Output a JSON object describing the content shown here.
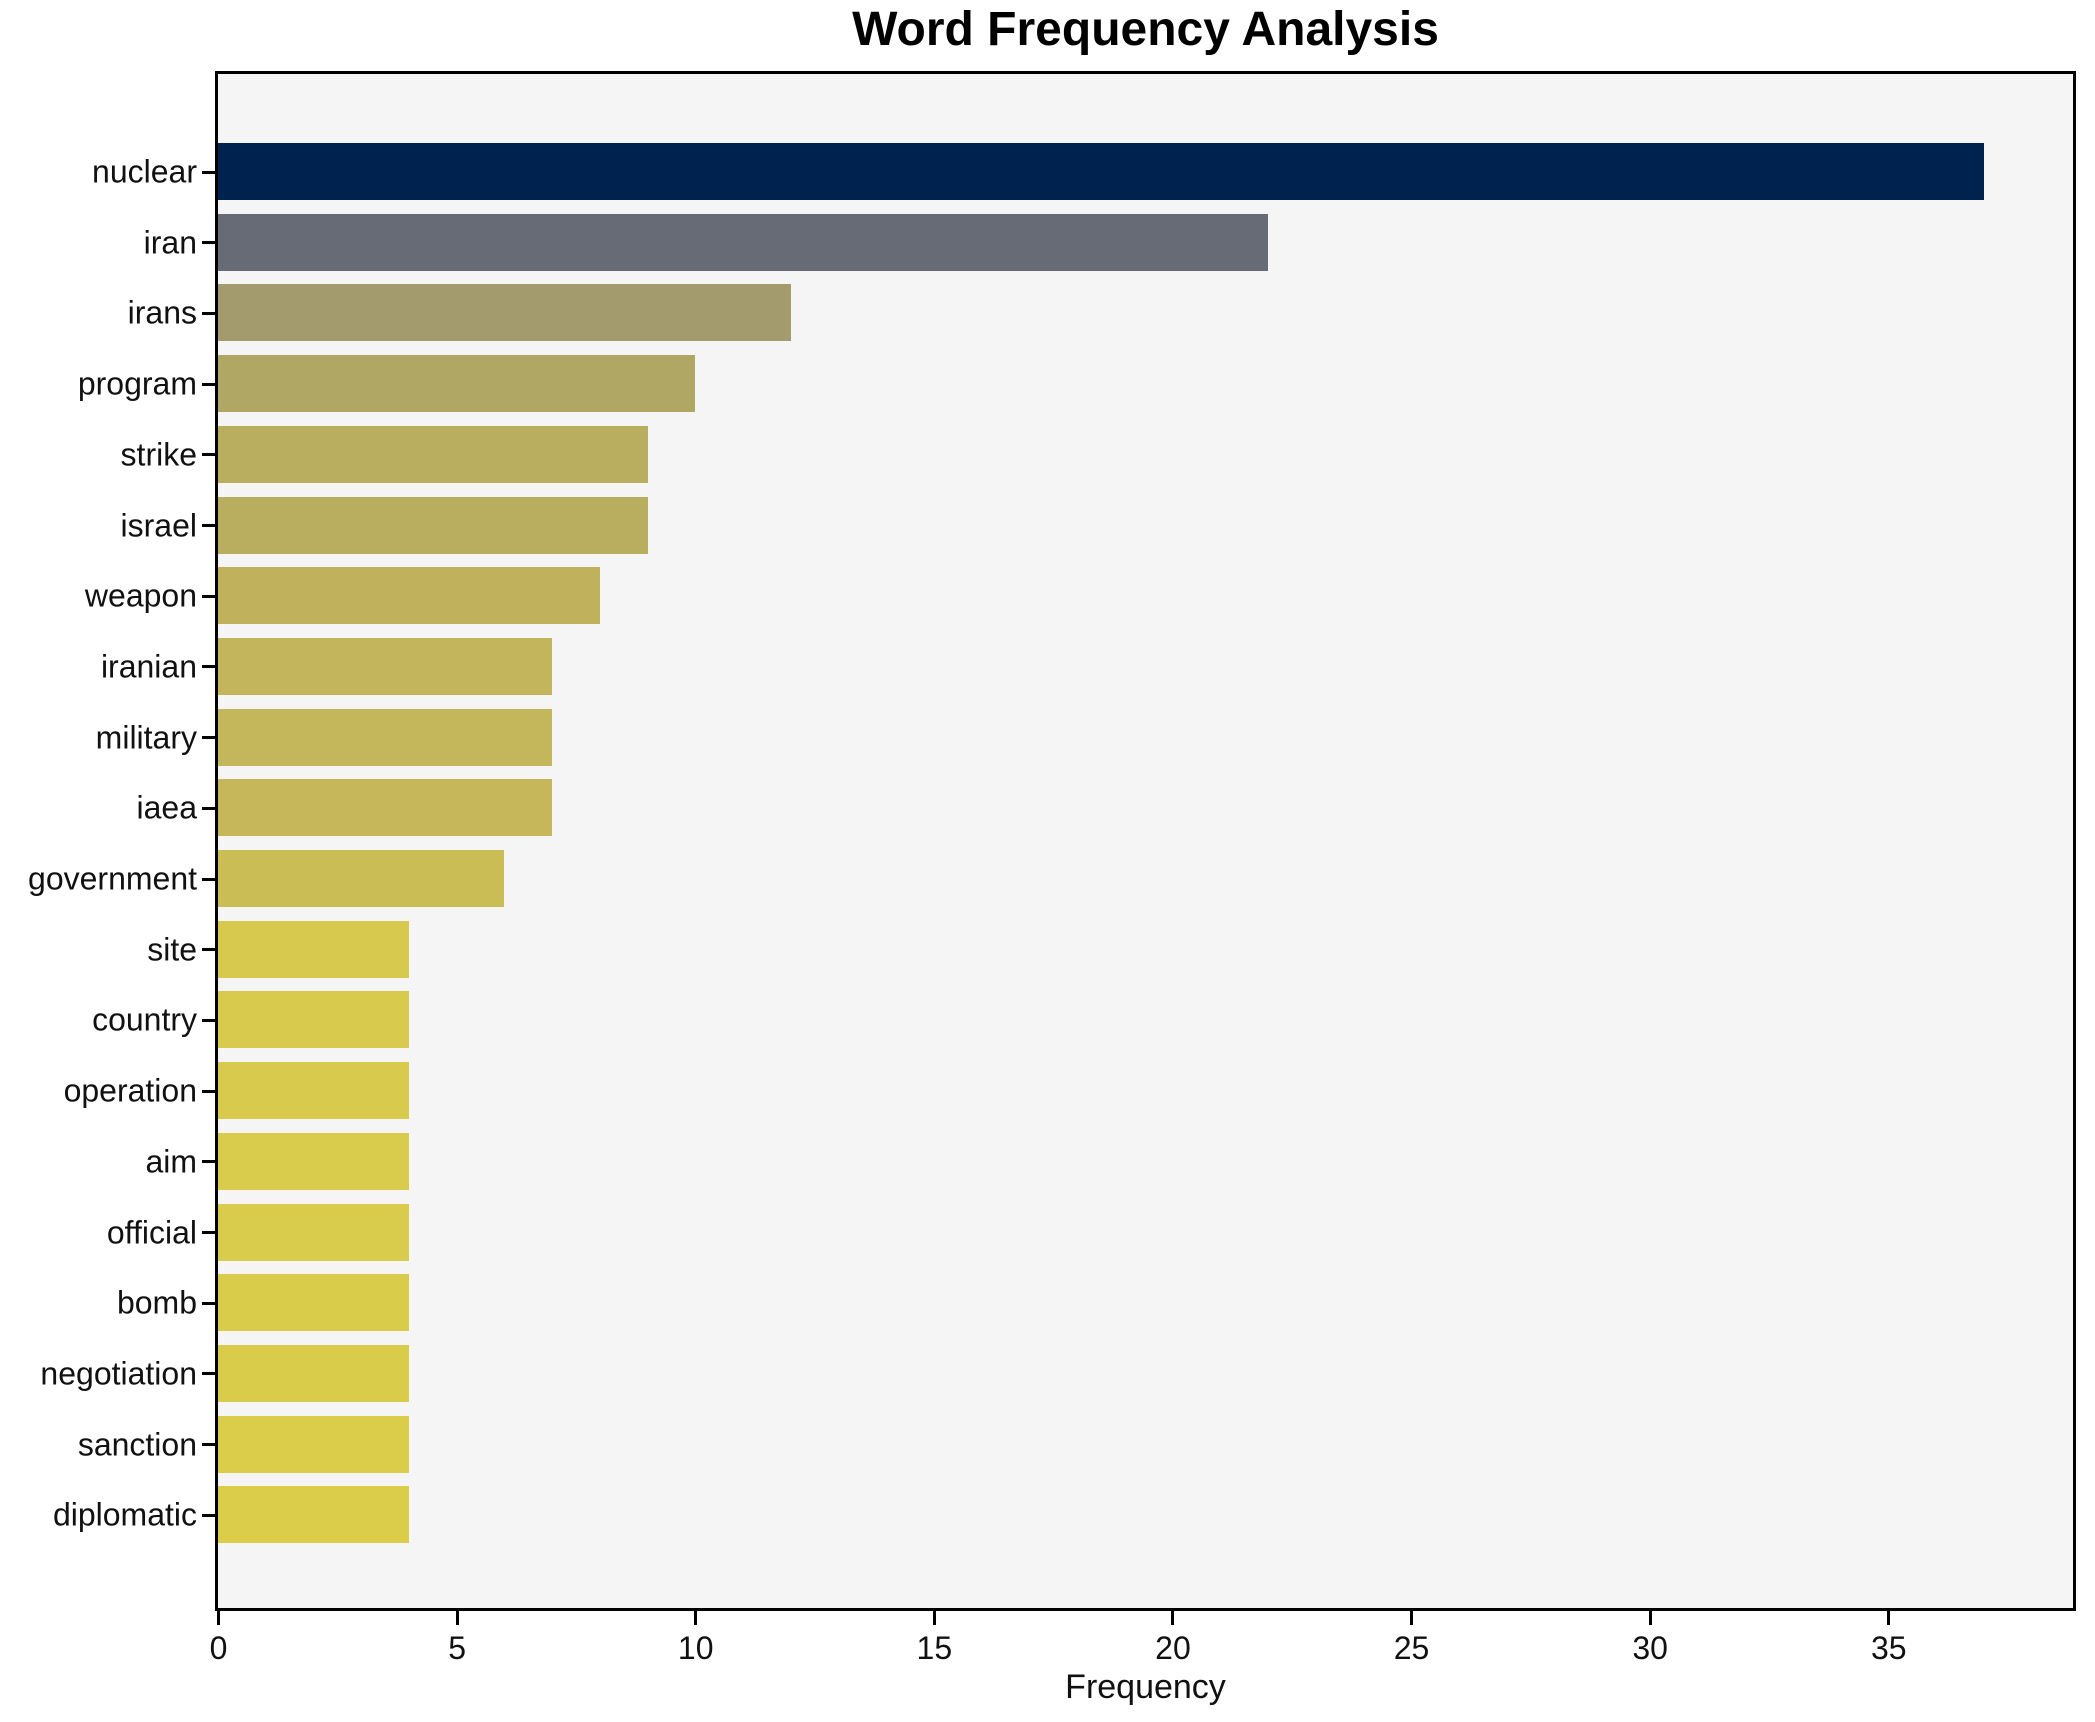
{
  "chart_data": {
    "type": "bar",
    "orientation": "horizontal",
    "title": "Word Frequency Analysis",
    "xlabel": "Frequency",
    "ylabel": "",
    "categories": [
      "nuclear",
      "iran",
      "irans",
      "program",
      "strike",
      "israel",
      "weapon",
      "iranian",
      "military",
      "iaea",
      "government",
      "site",
      "country",
      "operation",
      "aim",
      "official",
      "bomb",
      "negotiation",
      "sanction",
      "diplomatic"
    ],
    "values": [
      37,
      22,
      12,
      10,
      9,
      9,
      8,
      7,
      7,
      7,
      6,
      4,
      4,
      4,
      4,
      4,
      4,
      4,
      4,
      4
    ],
    "bar_colors": [
      "#00224e",
      "#666b76",
      "#a39a6d",
      "#b0a765",
      "#b9ad60",
      "#b9ad60",
      "#c0b25d",
      "#c3b55c",
      "#c4b65b",
      "#c5b75a",
      "#cbbd55",
      "#d7c94e",
      "#d8ca4d",
      "#d8ca4d",
      "#d9cb4c",
      "#d9cb4c",
      "#dacc4b",
      "#dacc4b",
      "#dbcd4a",
      "#dbcd4a"
    ],
    "xlim": [
      0,
      38.85
    ],
    "xticks": [
      0,
      5,
      10,
      15,
      20,
      25,
      30,
      35
    ],
    "grid": false,
    "legend_position": "none",
    "plot_background": "#f6f5f6",
    "figure_background": "#ffffff",
    "axis_color": "#000000",
    "text_color": "#111111"
  }
}
